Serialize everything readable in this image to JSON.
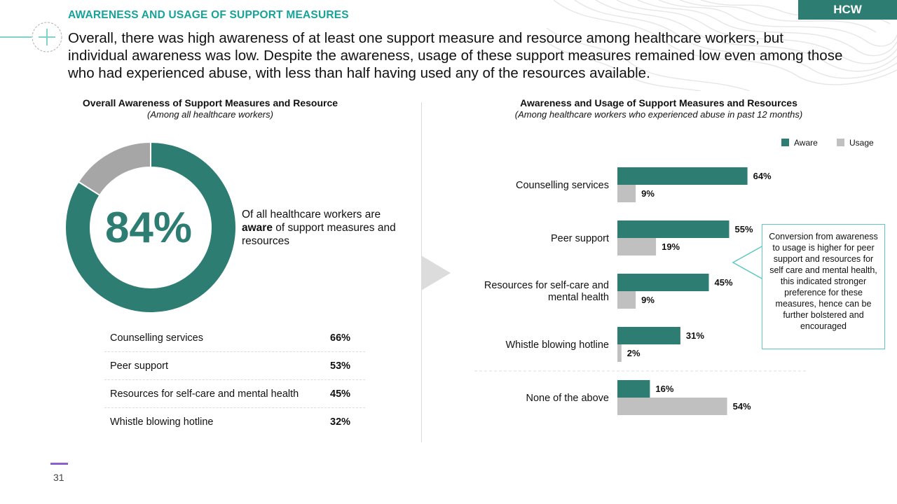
{
  "header": {
    "section_title": "AWARENESS AND USAGE OF SUPPORT MEASURES",
    "tag": "HCW",
    "headline": "Overall, there was high awareness of at least one support measure and resource among healthcare workers, but individual awareness was low. Despite the awareness, usage of these support measures remained low even among those who had experienced abuse, with less than half having used any of the resources available."
  },
  "left": {
    "title": "Overall Awareness of Support Measures and Resource",
    "subtitle": "(Among all healthcare workers)",
    "big_value": "84%",
    "note_prefix": "Of all healthcare workers are ",
    "note_bold": "aware",
    "note_suffix": " of support measures and resources",
    "rows": [
      {
        "label": "Counselling services",
        "value": "66%"
      },
      {
        "label": "Peer support",
        "value": "53%"
      },
      {
        "label": "Resources for self-care and mental health",
        "value": "45%"
      },
      {
        "label": "Whistle blowing hotline",
        "value": "32%"
      }
    ]
  },
  "right": {
    "title": "Awareness and Usage of Support Measures and Resources",
    "subtitle": "(Among healthcare workers who experienced abuse in past 12 months)",
    "callout": "Conversion from awareness to usage is higher for peer support and resources for self care and mental health, this indicated stronger preference for these measures, hence can be further bolstered and encouraged"
  },
  "colors": {
    "aware": "#2e7d73",
    "usage": "#c0c0c0",
    "donut_rest": "#a6a6a6",
    "accent": "#17a398"
  },
  "chart_data": [
    {
      "type": "pie",
      "title": "Overall Awareness of Support Measures and Resource",
      "subtitle": "(Among all healthcare workers)",
      "slices": [
        {
          "label": "Aware",
          "value": 84
        },
        {
          "label": "",
          "value": 16
        }
      ]
    },
    {
      "type": "bar",
      "orientation": "horizontal",
      "title": "Awareness and Usage of Support Measures and Resources",
      "subtitle": "(Among healthcare workers who experienced abuse in past 12 months)",
      "categories": [
        "Counselling services",
        "Peer support",
        "Resources for self-care and mental health",
        "Whistle blowing hotline",
        "None of the above"
      ],
      "series": [
        {
          "name": "Aware",
          "values": [
            64,
            55,
            45,
            31,
            16
          ]
        },
        {
          "name": "Usage",
          "values": [
            9,
            19,
            9,
            2,
            54
          ]
        }
      ],
      "value_suffix": "%",
      "legend": "top-right"
    }
  ],
  "footer": {
    "page_number": "31"
  }
}
